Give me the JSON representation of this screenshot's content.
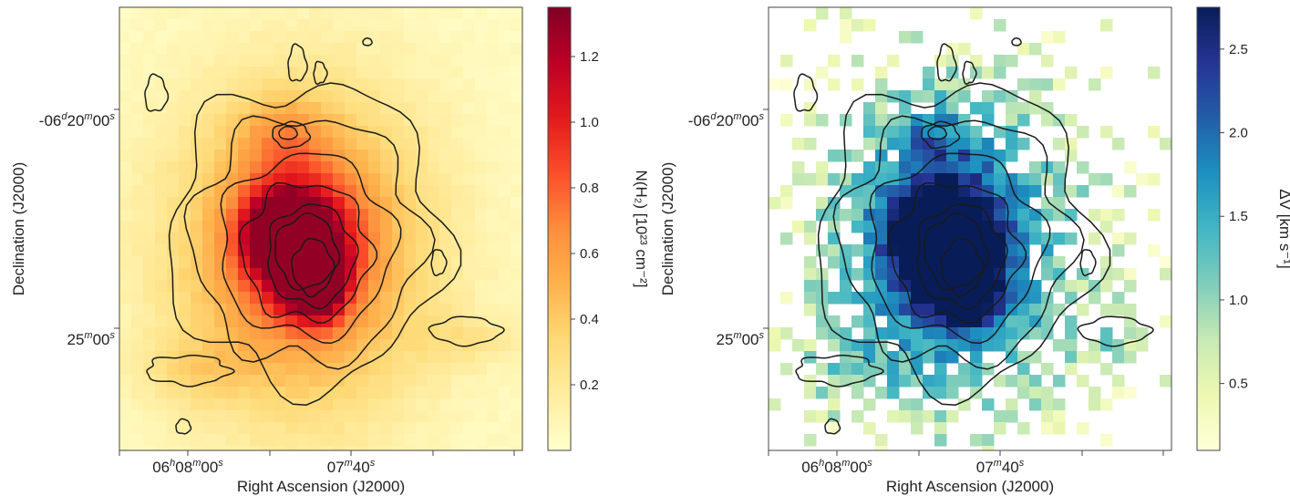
{
  "chart_data": [
    {
      "type": "heatmap",
      "panel": "left",
      "xlabel": "Right Ascension (J2000)",
      "ylabel": "Declination (J2000)",
      "xticks": [
        {
          "pre": "06",
          "sup1": "h",
          "mid": "08",
          "sup2": "m",
          "post": "00",
          "sup3": "s"
        },
        {
          "pre": "",
          "sup1": "",
          "mid": "07",
          "sup2": "m",
          "post": "40",
          "sup3": "s"
        }
      ],
      "yticks": [
        {
          "pre": "-06",
          "sup1": "d",
          "mid": "20",
          "sup2": "m",
          "post": "00",
          "sup3": "s"
        },
        {
          "pre": "",
          "sup1": "",
          "mid": "25",
          "sup2": "m",
          "post": "00",
          "sup3": "s"
        }
      ],
      "colorbar": {
        "label": "N(H₂) [10²³ cm⁻²]",
        "range": [
          0.0,
          1.35
        ],
        "ticks": [
          "0.2",
          "0.4",
          "0.6",
          "0.8",
          "1.0",
          "1.2"
        ],
        "tick_values": [
          0.2,
          0.4,
          0.6,
          0.8,
          1.0,
          1.2
        ],
        "colormap": [
          "#ffffcc",
          "#ffeda0",
          "#fed976",
          "#feb24c",
          "#fd8d3c",
          "#fc4e2a",
          "#e31a1c",
          "#bd0026",
          "#800026"
        ]
      },
      "contours": true,
      "grid": false
    },
    {
      "type": "heatmap",
      "panel": "right",
      "xlabel": "Right Ascension (J2000)",
      "ylabel": "Declination (J2000)",
      "xticks": [
        {
          "pre": "06",
          "sup1": "h",
          "mid": "08",
          "sup2": "m",
          "post": "00",
          "sup3": "s"
        },
        {
          "pre": "",
          "sup1": "",
          "mid": "07",
          "sup2": "m",
          "post": "40",
          "sup3": "s"
        }
      ],
      "yticks": [
        {
          "pre": "-06",
          "sup1": "d",
          "mid": "20",
          "sup2": "m",
          "post": "00",
          "sup3": "s"
        },
        {
          "pre": "",
          "sup1": "",
          "mid": "25",
          "sup2": "m",
          "post": "00",
          "sup3": "s"
        }
      ],
      "colorbar": {
        "label": "ΔV [km s⁻¹]",
        "range": [
          0.1,
          2.75
        ],
        "ticks": [
          "0.5",
          "1.0",
          "1.5",
          "2.0",
          "2.5"
        ],
        "tick_values": [
          0.5,
          1.0,
          1.5,
          2.0,
          2.5
        ],
        "colormap": [
          "#ffffd9",
          "#edf8b1",
          "#c7e9b4",
          "#7fcdbb",
          "#41b6c4",
          "#1d91c0",
          "#225ea8",
          "#253494",
          "#081d58"
        ]
      },
      "contours": true,
      "grid": false
    }
  ]
}
